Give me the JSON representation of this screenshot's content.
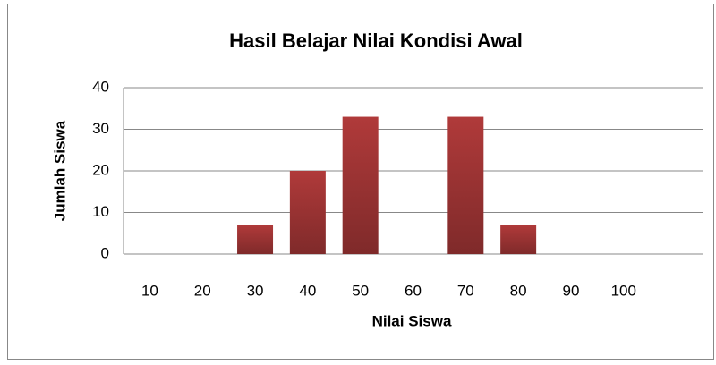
{
  "chart_data": {
    "type": "bar",
    "title": "Hasil Belajar Nilai Kondisi Awal",
    "x_label": "Nilai Siswa",
    "y_label": "Jumlah Siswa",
    "categories": [
      "10",
      "20",
      "30",
      "40",
      "50",
      "60",
      "70",
      "80",
      "90",
      "100",
      null
    ],
    "values": [
      0,
      0,
      7,
      20,
      33,
      0,
      33,
      7,
      0,
      0,
      null
    ],
    "color": "#b03a3a",
    "ylim": [
      0,
      40
    ],
    "yticks": [
      0,
      10,
      20,
      30,
      40
    ],
    "grid": true
  }
}
